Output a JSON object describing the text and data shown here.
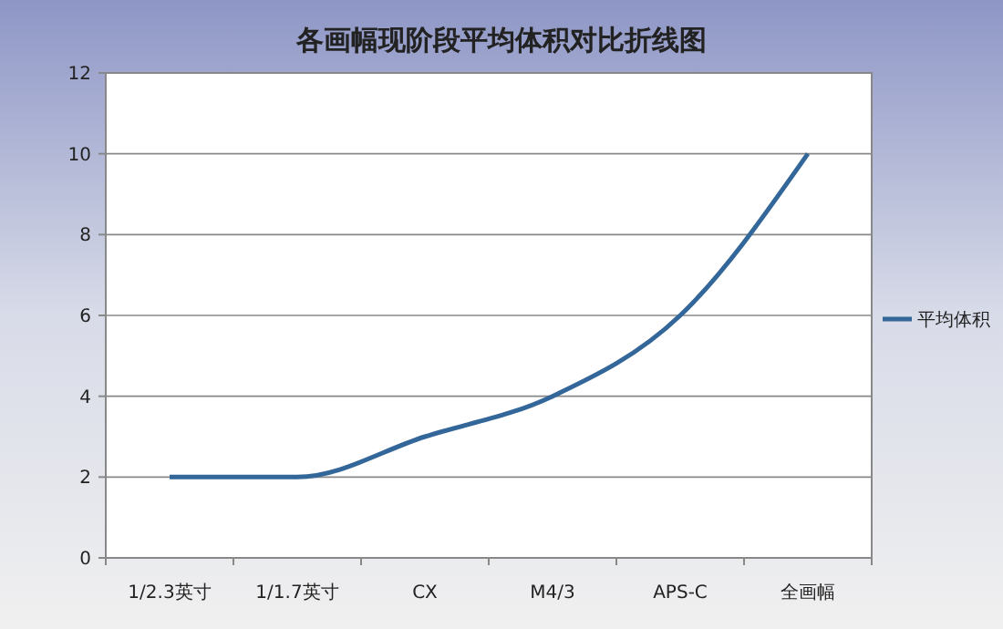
{
  "chart_data": {
    "type": "line",
    "title": "各画幅现阶段平均体积对比折线图",
    "categories": [
      "1/2.3英寸",
      "1/1.7英寸",
      "CX",
      "M4/3",
      "APS-C",
      "全画幅"
    ],
    "series": [
      {
        "name": "平均体积",
        "color": "#336699",
        "values": [
          2,
          2,
          3,
          4,
          6,
          10
        ]
      }
    ],
    "ylim": [
      0,
      12
    ],
    "yticks": [
      0,
      2,
      4,
      6,
      8,
      10,
      12
    ],
    "grid": "y",
    "legend": "right",
    "marker": "none",
    "line_style": "solid"
  }
}
